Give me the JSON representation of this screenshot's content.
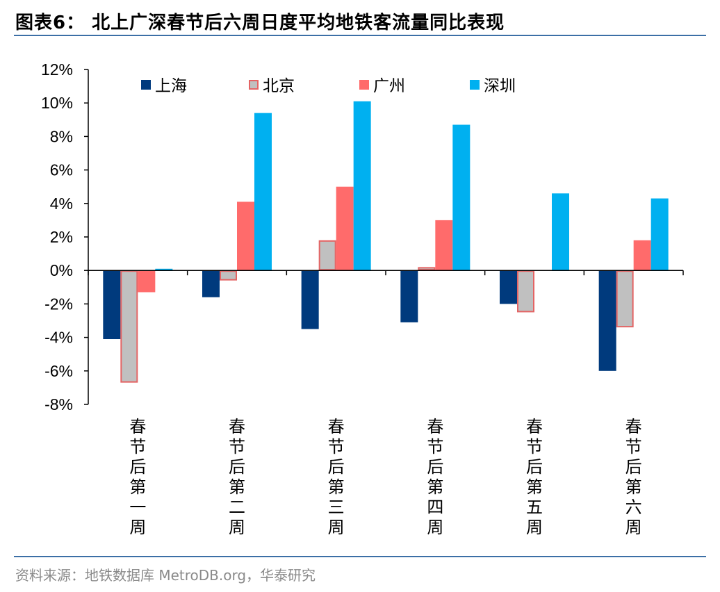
{
  "header": {
    "figure_title": "图表6：  北上广深春节后六周日度平均地铁客流量同比表现"
  },
  "footer": {
    "source": "资料来源：地铁数据库 MetroDB.org，华泰研究"
  },
  "colors": {
    "rule": "#3c6fa6",
    "shanghai": "#003A7D",
    "beijing_fill": "#C0C0C0",
    "beijing_border": "#E46464",
    "guangzhou": "#FF6B6B",
    "shenzhen": "#00B0F0"
  },
  "chart_data": {
    "type": "bar",
    "title": "",
    "xlabel": "",
    "ylabel": "",
    "ylim": [
      -8,
      12
    ],
    "yticks": [
      "12%",
      "10%",
      "8%",
      "6%",
      "4%",
      "2%",
      "0%",
      "-2%",
      "-4%",
      "-6%",
      "-8%"
    ],
    "categories": [
      "春节后第一周",
      "春节后第二周",
      "春节后第三周",
      "春节后第四周",
      "春节后第五周",
      "春节后第六周"
    ],
    "legend_position": "top",
    "series": [
      {
        "name": "上海",
        "values": [
          -4.1,
          -1.6,
          -3.5,
          -3.1,
          -2.0,
          -6.0
        ]
      },
      {
        "name": "北京",
        "values": [
          -6.7,
          -0.6,
          1.8,
          0.2,
          -2.5,
          -3.4
        ]
      },
      {
        "name": "广州",
        "values": [
          -1.3,
          4.1,
          5.0,
          3.0,
          0.0,
          1.8
        ]
      },
      {
        "name": "深圳",
        "values": [
          0.1,
          9.4,
          10.1,
          8.7,
          4.6,
          4.3
        ]
      }
    ]
  }
}
